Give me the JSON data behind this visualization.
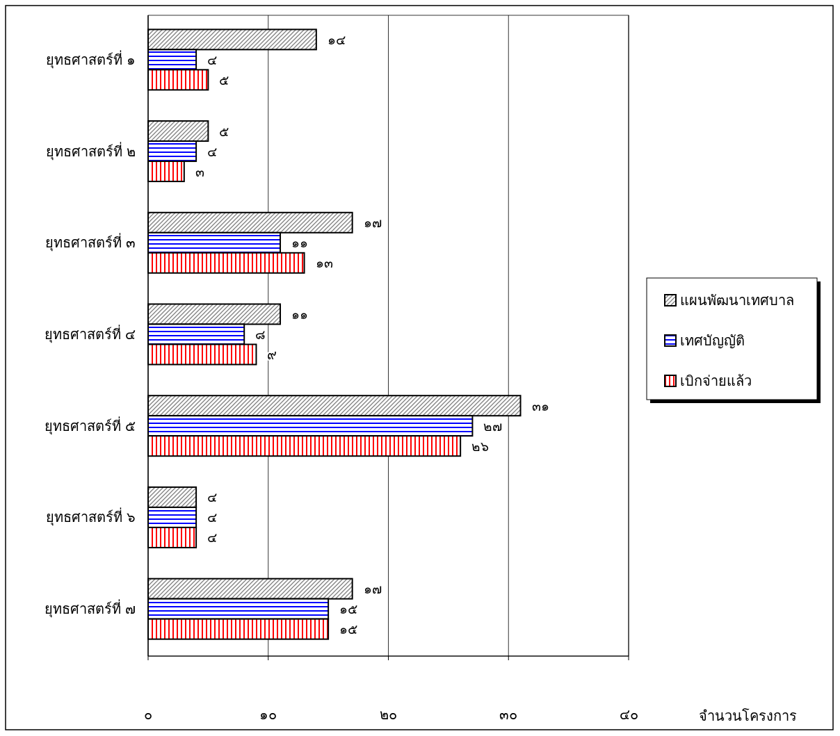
{
  "chart_data": {
    "type": "bar",
    "orientation": "horizontal",
    "xlabel": "จำนวนโครงการ",
    "categories": [
      "ยุทธศาสตร์ที่ ๑",
      "ยุทธศาสตร์ที่ ๒",
      "ยุทธศาสตร์ที่ ๓",
      "ยุทธศาสตร์ที่ ๔",
      "ยุทธศาสตร์ที่ ๕",
      "ยุทธศาสตร์ที่ ๖",
      "ยุทธศาสตร์ที่ ๗"
    ],
    "series": [
      {
        "name": "แผนพัฒนาเทศบาล",
        "color": "#808080",
        "values": [
          14,
          5,
          17,
          11,
          31,
          4,
          17
        ],
        "value_labels": [
          "๑๔",
          "๕",
          "๑๗",
          "๑๑",
          "๓๑",
          "๔",
          "๑๗"
        ]
      },
      {
        "name": "เทศบัญญัติ",
        "color": "#0000ff",
        "values": [
          4,
          4,
          11,
          8,
          27,
          4,
          15
        ],
        "value_labels": [
          "๔",
          "๔",
          "๑๑",
          "๘",
          "๒๗",
          "๔",
          "๑๕"
        ]
      },
      {
        "name": "เบิกจ่ายแล้ว",
        "color": "#ff0000",
        "values": [
          5,
          3,
          13,
          9,
          26,
          4,
          15
        ],
        "value_labels": [
          "๕",
          "๓",
          "๑๓",
          "๙",
          "๒๖",
          "๔",
          "๑๕"
        ]
      }
    ],
    "xlim": [
      0,
      40
    ],
    "xticks": [
      {
        "value": 0,
        "label": "๐"
      },
      {
        "value": 10,
        "label": "๑๐"
      },
      {
        "value": 20,
        "label": "๒๐"
      },
      {
        "value": 30,
        "label": "๓๐"
      },
      {
        "value": 40,
        "label": "๔๐"
      }
    ],
    "grid": "x",
    "legend": "right"
  }
}
